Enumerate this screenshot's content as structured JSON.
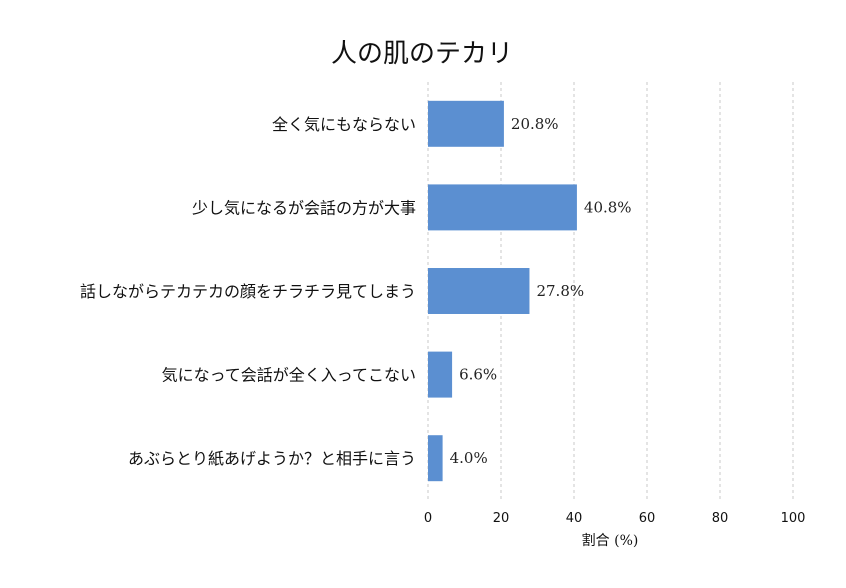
{
  "chart_data": {
    "type": "bar",
    "orientation": "horizontal",
    "title": "人の肌のテカリ",
    "xlabel": "割合 (%)",
    "ylabel": "",
    "xlim": [
      0,
      100
    ],
    "xticks": [
      0,
      20,
      40,
      60,
      80,
      100
    ],
    "grid": "vertical-dashed",
    "bar_color": "#5b8fd1",
    "categories": [
      "全く気にもならない",
      "少し気になるが会話の方が大事",
      "話しながらテカテカの顔をチラチラ見てしまう",
      "気になって会話が全く入ってこない",
      "あぶらとり紙あげようか？と相手に言う"
    ],
    "values": [
      20.8,
      40.8,
      27.8,
      6.6,
      4.0
    ],
    "value_labels": [
      "20.8%",
      "40.8%",
      "27.8%",
      "6.6%",
      "4.0%"
    ]
  }
}
